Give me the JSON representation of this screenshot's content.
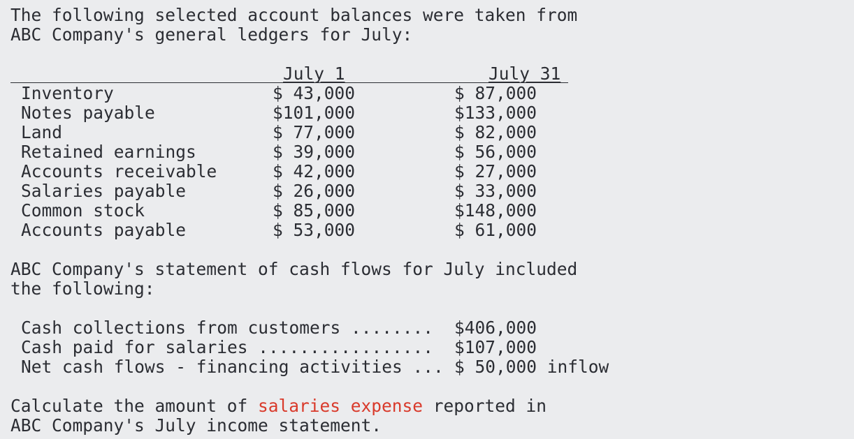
{
  "intro": {
    "line1": "The following selected account balances were taken from",
    "line2": "ABC Company's general ledgers for July:"
  },
  "table": {
    "col_headers": [
      "July 1",
      "July 31"
    ],
    "rows": [
      {
        "account": "Inventory",
        "july1": "$ 43,000",
        "july31": "$ 87,000"
      },
      {
        "account": "Notes payable",
        "july1": "$101,000",
        "july31": "$133,000"
      },
      {
        "account": "Land",
        "july1": "$ 77,000",
        "july31": "$ 82,000"
      },
      {
        "account": "Retained earnings",
        "july1": "$ 39,000",
        "july31": "$ 56,000"
      },
      {
        "account": "Accounts receivable",
        "july1": "$ 42,000",
        "july31": "$ 27,000"
      },
      {
        "account": "Salaries payable",
        "july1": "$ 26,000",
        "july31": "$ 33,000"
      },
      {
        "account": "Common stock",
        "july1": "$ 85,000",
        "july31": "$148,000"
      },
      {
        "account": "Accounts payable",
        "july1": "$ 53,000",
        "july31": "$ 61,000"
      }
    ]
  },
  "cashflow_intro": {
    "line1": "ABC Company's statement of cash flows for July included",
    "line2": "the following:"
  },
  "cashflow": [
    {
      "label": "Cash collections from customers ........",
      "value": "$406,000"
    },
    {
      "label": "Cash paid for salaries .................",
      "value": "$107,000"
    },
    {
      "label": "Net cash flows - financing activities ...",
      "value": "$ 50,000 inflow"
    }
  ],
  "question": {
    "pre": "Calculate the amount of ",
    "highlight": "salaries expense",
    "post": " reported in",
    "line2": "ABC Company's July income statement.",
    "highlight_color": "#d93a2b"
  }
}
